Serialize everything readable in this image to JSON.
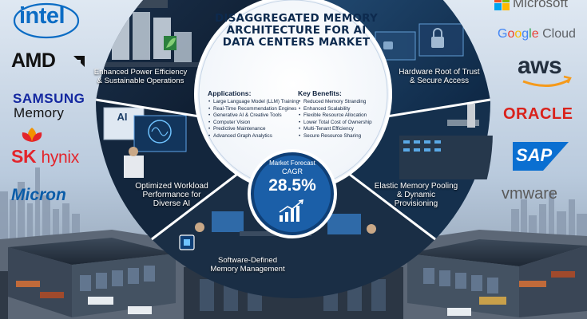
{
  "title": "DISAGGREGATED MEMORY ARCHITECTURE FOR AI DATA CENTERS MARKET",
  "applications": {
    "heading": "Applications:",
    "items": [
      "Large Language Model (LLM) Training",
      "Real-Time Recommendation Engines",
      "Generative AI & Creative Tools",
      "Computer Vision",
      "Predictive Maintenance",
      "Advanced Graph Analytics"
    ]
  },
  "benefits": {
    "heading": "Key Benefits:",
    "items": [
      "Reduced Memory Stranding",
      "Enhanced Scalability",
      "Flexible Resource Allocation",
      "Lower Total Cost of Ownership",
      "Multi-Tenant Efficiency",
      "Secure Resource Sharing"
    ]
  },
  "forecast": {
    "line1": "Market Forecast",
    "line2": "CAGR",
    "value": "28.5%"
  },
  "panels": {
    "top_left": [
      "Enhanced Power Efficiency",
      "& Sustainable Operations"
    ],
    "top_right": [
      "Hardware Root of Trust",
      "& Secure Access"
    ],
    "mid_left": [
      "Optimized Workload",
      "Performance for",
      "Diverse AI"
    ],
    "mid_right": [
      "Elastic Memory Pooling",
      "& Dynamic",
      "Provisioning"
    ],
    "bottom": [
      "Software-Defined",
      "Memory Management"
    ],
    "screen_text": "AI"
  },
  "logos_left": {
    "intel": "intel",
    "amd": "AMD",
    "samsung": "SAMSUNG",
    "samsung_sub": "Memory",
    "skhynix_sk": "SK",
    "skhynix_hynix": "hynix",
    "micron": "Micron"
  },
  "logos_right": {
    "microsoft": "Microsoft",
    "google": [
      "G",
      "o",
      "o",
      "g",
      "l",
      "e"
    ],
    "google_cloud": "Cloud",
    "aws": "aws",
    "oracle": "ORACLE",
    "sap": "SAP",
    "vmware": "vmware"
  },
  "colors": {
    "intel": "#0b6cc4",
    "amd": "#111111",
    "samsung": "#1428a0",
    "skhynix": "#e3242b",
    "micron": "#0b5ca8",
    "oracle": "#d9221c",
    "sap": "#0a6fd1",
    "aws": "#232f3e",
    "aws_smile": "#f59a1b",
    "google": [
      "#4285f4",
      "#ea4335",
      "#fbbc05",
      "#4285f4",
      "#34a853",
      "#ea4335"
    ],
    "vmware": "#5a5a5a",
    "forecast_circle": "#1b5fa8"
  }
}
